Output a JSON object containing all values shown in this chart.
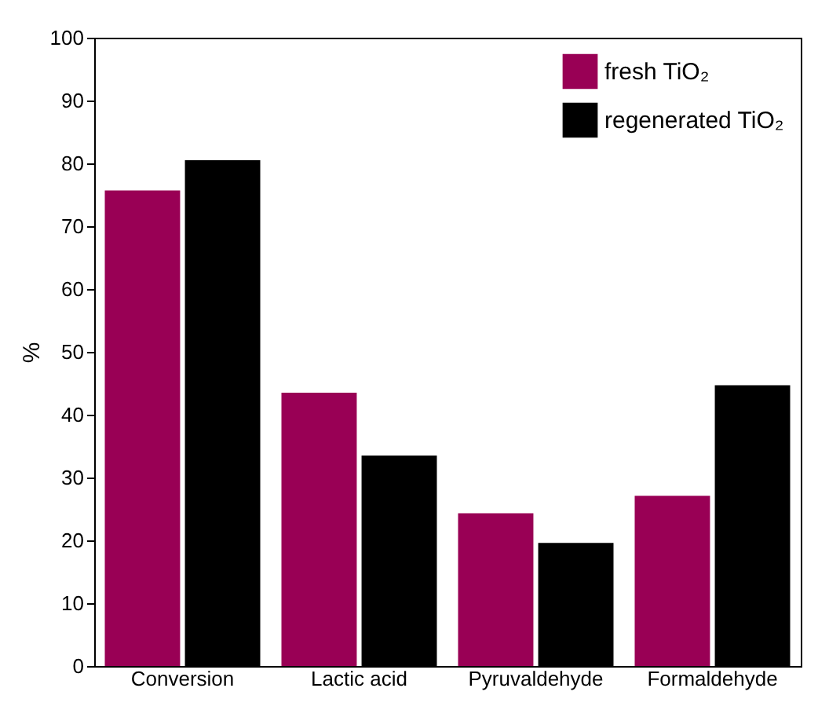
{
  "chart_data": {
    "type": "bar",
    "ylabel": "%",
    "categories": [
      "Conversion",
      "Lactic acid",
      "Pyruvaldehyde",
      "Formaldehyde"
    ],
    "series": [
      {
        "name": "fresh TiO₂",
        "color": "#990055",
        "values": [
          75.7,
          43.5,
          24.3,
          27.1
        ]
      },
      {
        "name": "regenerated TiO₂",
        "color": "#000000",
        "values": [
          80.5,
          33.5,
          19.6,
          44.7
        ]
      }
    ],
    "ylim": [
      0,
      100
    ],
    "yticks": [
      0,
      10,
      20,
      30,
      40,
      50,
      60,
      70,
      80,
      90,
      100
    ],
    "grid": false,
    "legend": "top right"
  }
}
